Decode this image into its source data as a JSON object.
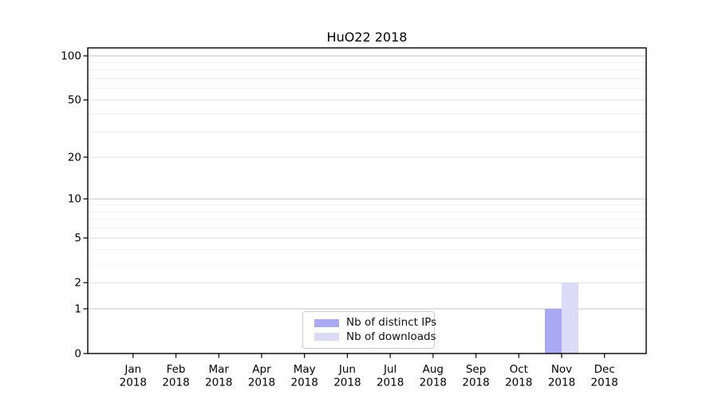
{
  "chart_data": {
    "type": "bar",
    "title": "HuO22 2018",
    "y_scale": "log1p",
    "categories": [
      "Jan",
      "Feb",
      "Mar",
      "Apr",
      "May",
      "Jun",
      "Jul",
      "Aug",
      "Sep",
      "Oct",
      "Nov",
      "Dec"
    ],
    "category_year": "2018",
    "series": [
      {
        "name": "Nb of distinct IPs",
        "color": "#a9a9f3",
        "values": [
          0,
          0,
          0,
          0,
          0,
          0,
          0,
          0,
          0,
          0,
          1,
          0
        ]
      },
      {
        "name": "Nb of downloads",
        "color": "#dbdbf8",
        "values": [
          0,
          0,
          0,
          0,
          0,
          0,
          0,
          0,
          0,
          0,
          2,
          0
        ]
      }
    ],
    "y_ticks": [
      0,
      1,
      2,
      5,
      10,
      20,
      50,
      100
    ],
    "y_tick_labels": [
      "0",
      "1",
      "2",
      "5",
      "10",
      "20",
      "50",
      "100"
    ],
    "grid": {
      "major_values": [
        1,
        10,
        100
      ],
      "mid_values": [
        2,
        5,
        20,
        50
      ],
      "minor_values": [
        3,
        4,
        6,
        7,
        8,
        9,
        30,
        40,
        60,
        70,
        80,
        90
      ],
      "major_color": "#c3c3c3",
      "mid_color": "#e2e2e2",
      "minor_color": "#efefef"
    },
    "ylim": [
      0,
      114
    ],
    "legend_position": "lower center",
    "axis_color": "#000000",
    "background_color": "#ffffff"
  }
}
